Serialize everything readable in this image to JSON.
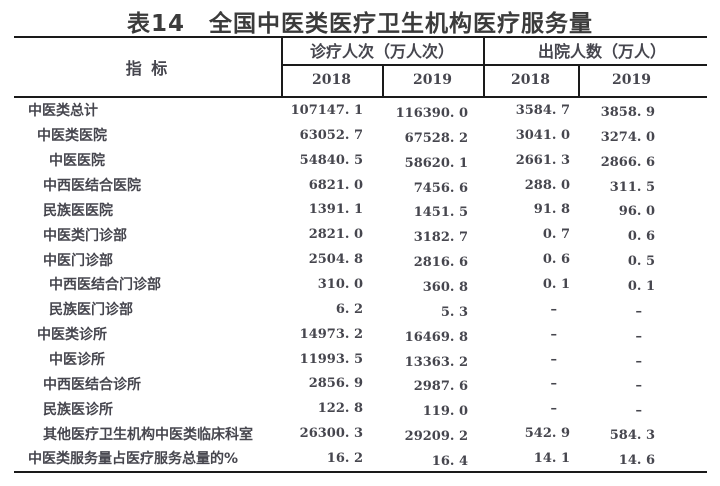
{
  "title": "表14　全国中医类医疗卫生机构医疗服务量",
  "table": {
    "indicator_header": "指 标",
    "groups": [
      {
        "label": "诊疗人次（万人次）",
        "years": [
          "2018",
          "2019"
        ]
      },
      {
        "label": "出院人数（万人）",
        "years": [
          "2018",
          "2019"
        ]
      }
    ],
    "rows": [
      {
        "label": "中医类总计",
        "indent": 0,
        "values": [
          "107147. 1",
          "116390. 0",
          "3584. 7",
          "3858. 9"
        ]
      },
      {
        "label": "中医类医院",
        "indent": 1,
        "values": [
          "63052. 7",
          "67528. 2",
          "3041. 0",
          "3274. 0"
        ]
      },
      {
        "label": "中医医院",
        "indent": 3,
        "values": [
          "54840. 5",
          "58620. 1",
          "2661. 3",
          "2866. 6"
        ]
      },
      {
        "label": "中西医结合医院",
        "indent": 2,
        "values": [
          "6821. 0",
          "7456. 6",
          "288. 0",
          "311. 5"
        ]
      },
      {
        "label": "民族医医院",
        "indent": 2,
        "values": [
          "1391. 1",
          "1451. 5",
          "91. 8",
          "96. 0"
        ]
      },
      {
        "label": "中医类门诊部",
        "indent": 2,
        "values": [
          "2821. 0",
          "3182. 7",
          "0. 7",
          "0. 6"
        ]
      },
      {
        "label": "中医门诊部",
        "indent": 2,
        "values": [
          "2504. 8",
          "2816. 6",
          "0. 6",
          "0. 5"
        ]
      },
      {
        "label": "中西医结合门诊部",
        "indent": 3,
        "values": [
          "310. 0",
          "360. 8",
          "0. 1",
          "0. 1"
        ]
      },
      {
        "label": "民族医门诊部",
        "indent": 3,
        "values": [
          "6. 2",
          "5. 3",
          "–",
          "–"
        ]
      },
      {
        "label": "中医类诊所",
        "indent": 1,
        "values": [
          "14973. 2",
          "16469. 8",
          "–",
          "–"
        ]
      },
      {
        "label": "中医诊所",
        "indent": 3,
        "values": [
          "11993. 5",
          "13363. 2",
          "–",
          "–"
        ]
      },
      {
        "label": "中西医结合诊所",
        "indent": 2,
        "values": [
          "2856. 9",
          "2987. 6",
          "–",
          "–"
        ]
      },
      {
        "label": "民族医诊所",
        "indent": 2,
        "values": [
          "122. 8",
          "119. 0",
          "–",
          "–"
        ]
      },
      {
        "label": "其他医疗卫生机构中医类临床科室",
        "indent": 2,
        "values": [
          "26300. 3",
          "29209. 2",
          "542. 9",
          "584. 3"
        ]
      },
      {
        "label": "中医类服务量占医疗服务总量的%",
        "indent": 0,
        "values": [
          "16. 2",
          "16. 4",
          "14. 1",
          "14. 6"
        ]
      }
    ]
  },
  "colors": {
    "text": "#46464e",
    "title": "#3b3b3b",
    "line": "#1a1a1a",
    "background": "#ffffff"
  }
}
